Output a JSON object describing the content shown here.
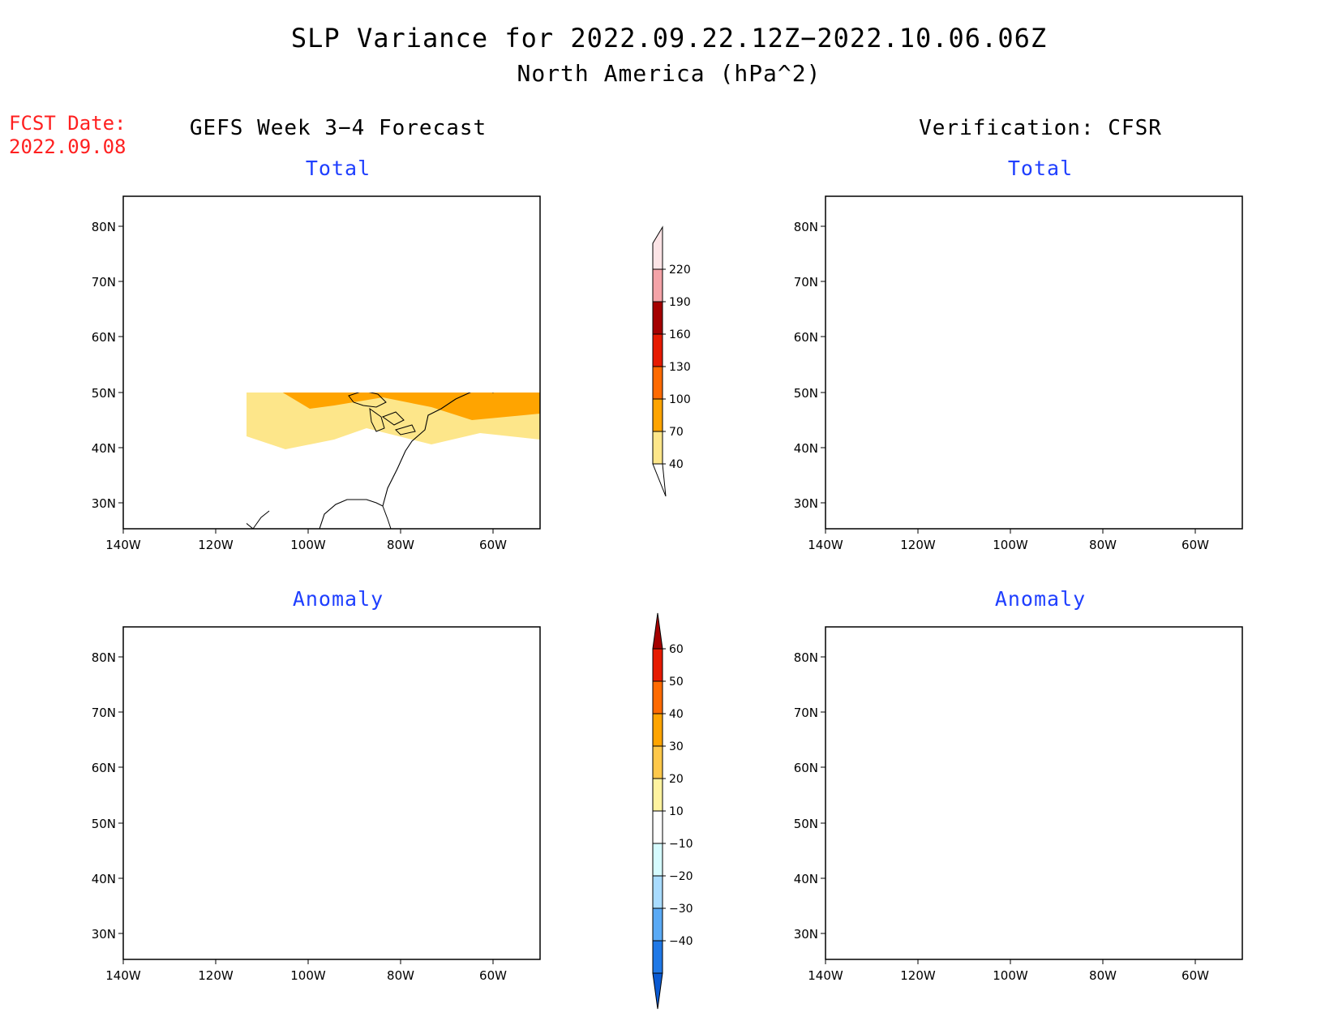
{
  "title": {
    "line1": "SLP Variance for 2022.09.22.12Z−2022.10.06.06Z",
    "line2": "North America (hPa^2)"
  },
  "forecast_date": {
    "label": "FCST Date:",
    "value": "2022.09.08"
  },
  "columns": {
    "left": "GEFS Week 3−4 Forecast",
    "right": "Verification: CFSR"
  },
  "panels": {
    "top_left": "Total",
    "top_right": "Total",
    "bottom_left": "Anomaly",
    "bottom_right": "Anomaly"
  },
  "map_axes": {
    "lat_labels": [
      "80N",
      "70N",
      "60N",
      "50N",
      "40N",
      "30N"
    ],
    "lon_labels": [
      "140W",
      "120W",
      "100W",
      "80W",
      "60W"
    ]
  },
  "colorbar_total": {
    "levels": [
      "40",
      "70",
      "100",
      "130",
      "160",
      "190",
      "220"
    ],
    "colors": [
      "#fde68a",
      "#ffa400",
      "#ff6a00",
      "#e61a00",
      "#a50000",
      "#f4a3a8",
      "#fce4e6"
    ]
  },
  "colorbar_anomaly": {
    "levels": [
      "60",
      "50",
      "40",
      "30",
      "20",
      "10",
      "−10",
      "−20",
      "−30",
      "−40"
    ],
    "colors": [
      "#a50000",
      "#e61a00",
      "#ff6a00",
      "#ffa400",
      "#ffc84a",
      "#fff3a0",
      "#ffffff",
      "#d6fbff",
      "#a9dcff",
      "#5aaaf5",
      "#1f78e6",
      "#0a5ad2"
    ]
  }
}
